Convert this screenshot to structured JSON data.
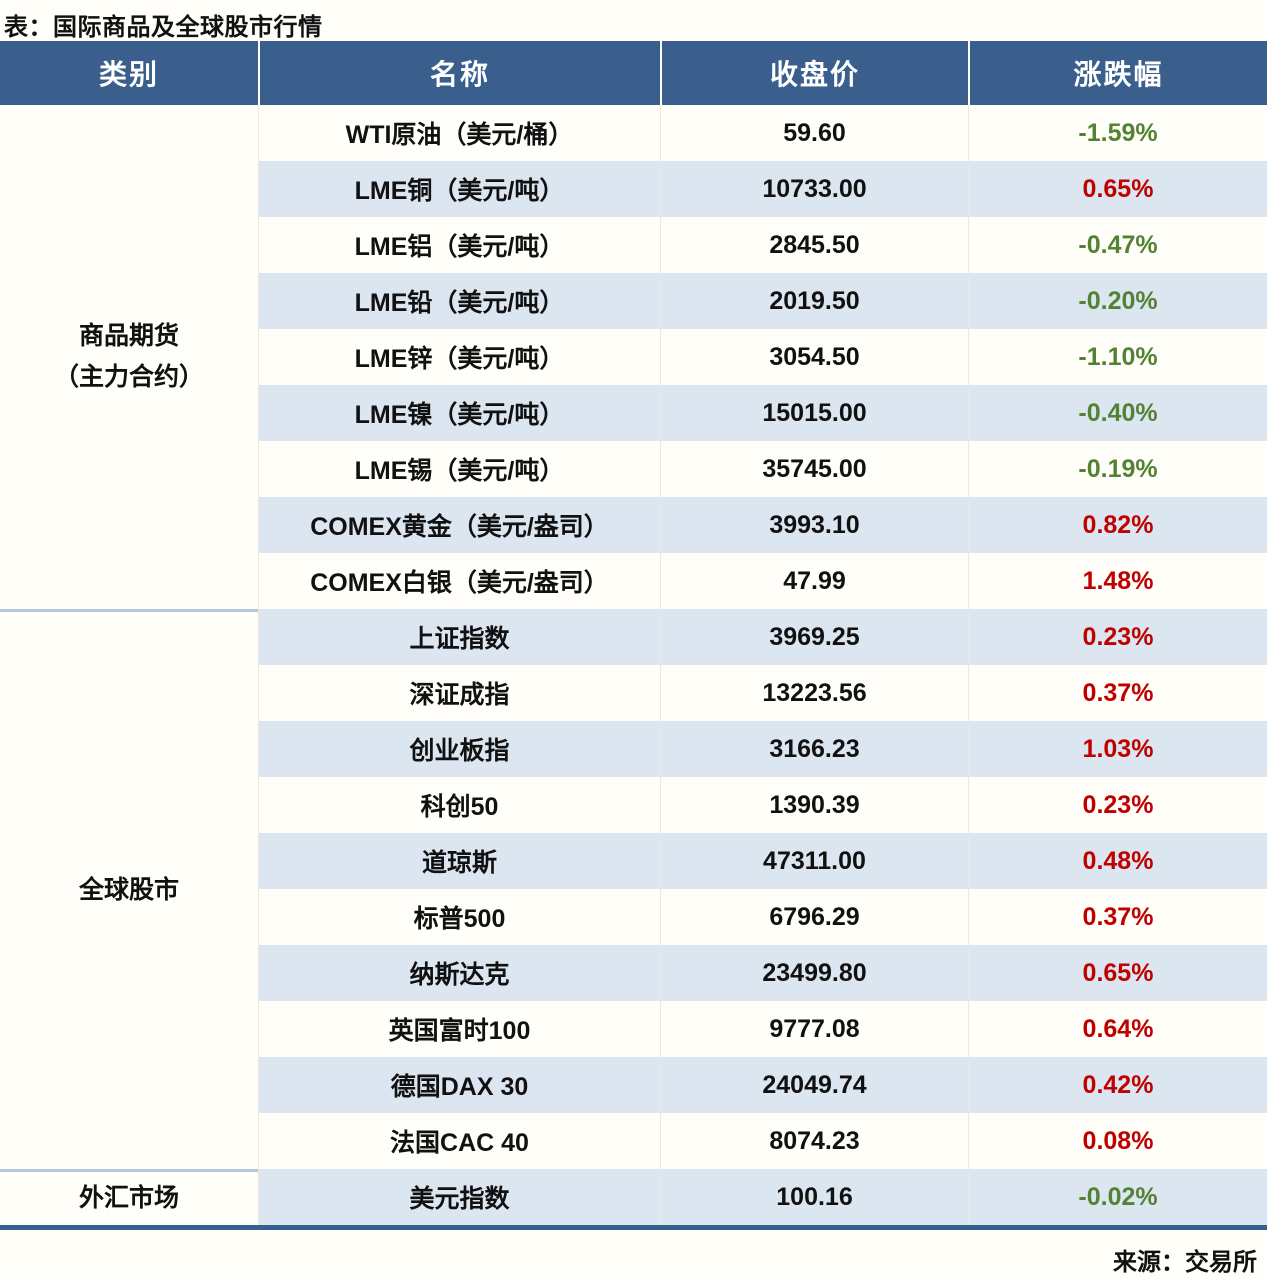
{
  "title": "表：国际商品及全球股市行情",
  "source": "来源：交易所",
  "colors": {
    "header_bg": "#3a5f8d",
    "stripe_bg": "#dce6f1",
    "row_bg": "#fffef8",
    "positive_change": "#c00000",
    "negative_change": "#548235",
    "bottom_border": "#34608f",
    "group_divider": "#b5c7dd"
  },
  "chart_data": {
    "type": "table",
    "title": "表：国际商品及全球股市行情",
    "columns": [
      "类别",
      "名称",
      "收盘价",
      "涨跌幅"
    ],
    "groups": [
      {
        "category": "商品期货（主力合约）",
        "category_lines": [
          "商品期货",
          "（主力合约）"
        ],
        "rows": [
          {
            "name": "WTI原油（美元/桶）",
            "close": "59.60",
            "change": "-1.59%",
            "direction": "down"
          },
          {
            "name": "LME铜（美元/吨）",
            "close": "10733.00",
            "change": "0.65%",
            "direction": "up"
          },
          {
            "name": "LME铝（美元/吨）",
            "close": "2845.50",
            "change": "-0.47%",
            "direction": "down"
          },
          {
            "name": "LME铅（美元/吨）",
            "close": "2019.50",
            "change": "-0.20%",
            "direction": "down"
          },
          {
            "name": "LME锌（美元/吨）",
            "close": "3054.50",
            "change": "-1.10%",
            "direction": "down"
          },
          {
            "name": "LME镍（美元/吨）",
            "close": "15015.00",
            "change": "-0.40%",
            "direction": "down"
          },
          {
            "name": "LME锡（美元/吨）",
            "close": "35745.00",
            "change": "-0.19%",
            "direction": "down"
          },
          {
            "name": "COMEX黄金（美元/盎司）",
            "close": "3993.10",
            "change": "0.82%",
            "direction": "up"
          },
          {
            "name": "COMEX白银（美元/盎司）",
            "close": "47.99",
            "change": "1.48%",
            "direction": "up"
          }
        ]
      },
      {
        "category": "全球股市",
        "category_lines": [
          "全球股市"
        ],
        "rows": [
          {
            "name": "上证指数",
            "close": "3969.25",
            "change": "0.23%",
            "direction": "up"
          },
          {
            "name": "深证成指",
            "close": "13223.56",
            "change": "0.37%",
            "direction": "up"
          },
          {
            "name": "创业板指",
            "close": "3166.23",
            "change": "1.03%",
            "direction": "up"
          },
          {
            "name": "科创50",
            "close": "1390.39",
            "change": "0.23%",
            "direction": "up"
          },
          {
            "name": "道琼斯",
            "close": "47311.00",
            "change": "0.48%",
            "direction": "up"
          },
          {
            "name": "标普500",
            "close": "6796.29",
            "change": "0.37%",
            "direction": "up"
          },
          {
            "name": "纳斯达克",
            "close": "23499.80",
            "change": "0.65%",
            "direction": "up"
          },
          {
            "name": "英国富时100",
            "close": "9777.08",
            "change": "0.64%",
            "direction": "up"
          },
          {
            "name": "德国DAX 30",
            "close": "24049.74",
            "change": "0.42%",
            "direction": "up"
          },
          {
            "name": "法国CAC 40",
            "close": "8074.23",
            "change": "0.08%",
            "direction": "up"
          }
        ]
      },
      {
        "category": "外汇市场",
        "category_lines": [
          "外汇市场"
        ],
        "rows": [
          {
            "name": "美元指数",
            "close": "100.16",
            "change": "-0.02%",
            "direction": "down"
          }
        ]
      }
    ]
  }
}
